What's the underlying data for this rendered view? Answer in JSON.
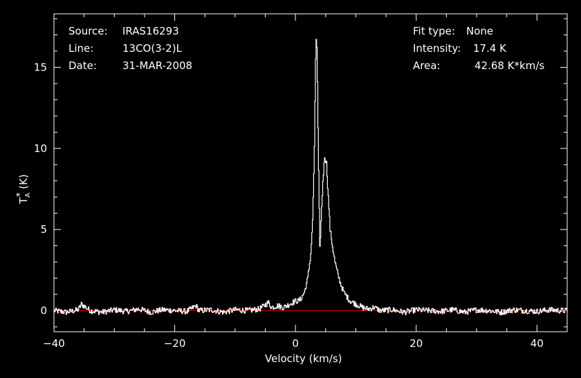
{
  "info_left": {
    "source_key": "Source:",
    "source_val": "IRAS16293",
    "line_key": "Line:",
    "line_val": "13CO(3-2)L",
    "date_key": "Date:",
    "date_val": "31-MAR-2008"
  },
  "info_right": {
    "fit_key": "Fit type:",
    "fit_val": "None",
    "intensity_key": "Intensity:",
    "intensity_val": "17.4 K",
    "area_key": "Area:",
    "area_val": "42.68 K*km/s"
  },
  "colors": {
    "background": "#000000",
    "axes": "#ffffff",
    "spectrum": "#ffffff",
    "baseline": "#cc0000"
  },
  "chart_data": {
    "type": "line",
    "xlabel": "Velocity (km/s)",
    "ylabel_main": "T",
    "ylabel_sub": "A",
    "ylabel_sup": "*",
    "ylabel_unit": "(K)",
    "xlim": [
      -40,
      45
    ],
    "ylim": [
      -1.3,
      18.3
    ],
    "x_ticks": [
      -40,
      -20,
      0,
      20,
      40
    ],
    "x_tick_labels": [
      "-40",
      "-20",
      "0",
      "20",
      "40"
    ],
    "y_ticks": [
      0,
      5,
      10,
      15
    ],
    "y_tick_labels": [
      "0",
      "5",
      "10",
      "15"
    ],
    "baseline": 0,
    "grid": false,
    "series": [
      {
        "values": [
          [
            -40,
            0.0
          ],
          [
            -38,
            -0.1
          ],
          [
            -36,
            0.05
          ],
          [
            -35.5,
            0.4
          ],
          [
            -34,
            0.0
          ],
          [
            -32,
            -0.1
          ],
          [
            -30,
            0.05
          ],
          [
            -28,
            -0.05
          ],
          [
            -26,
            0.1
          ],
          [
            -24,
            -0.1
          ],
          [
            -22,
            0.05
          ],
          [
            -20,
            0.0
          ],
          [
            -18,
            -0.05
          ],
          [
            -16.5,
            0.3
          ],
          [
            -16,
            0.0
          ],
          [
            -14,
            0.05
          ],
          [
            -12,
            -0.1
          ],
          [
            -10,
            0.05
          ],
          [
            -8,
            0.0
          ],
          [
            -6,
            0.1
          ],
          [
            -4.5,
            0.5
          ],
          [
            -4,
            0.2
          ],
          [
            -3,
            0.3
          ],
          [
            -2,
            0.2
          ],
          [
            -1,
            0.4
          ],
          [
            0,
            0.6
          ],
          [
            0.5,
            0.6
          ],
          [
            1,
            0.8
          ],
          [
            1.5,
            1.2
          ],
          [
            2,
            2.0
          ],
          [
            2.5,
            3.5
          ],
          [
            2.8,
            5.5
          ],
          [
            3.1,
            10.0
          ],
          [
            3.3,
            15.5
          ],
          [
            3.45,
            17.4
          ],
          [
            3.6,
            14.0
          ],
          [
            3.8,
            8.5
          ],
          [
            4.0,
            3.8
          ],
          [
            4.2,
            5.5
          ],
          [
            4.5,
            8.0
          ],
          [
            4.8,
            9.5
          ],
          [
            5.1,
            9.1
          ],
          [
            5.4,
            7.0
          ],
          [
            5.7,
            5.0
          ],
          [
            6.0,
            4.2
          ],
          [
            6.5,
            3.0
          ],
          [
            7.0,
            2.2
          ],
          [
            7.5,
            1.6
          ],
          [
            8.0,
            1.1
          ],
          [
            9.0,
            0.6
          ],
          [
            10.0,
            0.4
          ],
          [
            11.0,
            0.2
          ],
          [
            12.0,
            0.1
          ],
          [
            13.0,
            0.2
          ],
          [
            14.0,
            0.0
          ],
          [
            16.0,
            0.05
          ],
          [
            18,
            -0.1
          ],
          [
            20,
            0.05
          ],
          [
            22,
            0.0
          ],
          [
            24,
            -0.05
          ],
          [
            26,
            0.05
          ],
          [
            28,
            -0.1
          ],
          [
            30,
            0.05
          ],
          [
            32,
            0.0
          ],
          [
            34,
            -0.1
          ],
          [
            36,
            0.05
          ],
          [
            38,
            0.0
          ],
          [
            40,
            -0.05
          ],
          [
            42,
            0.05
          ],
          [
            44,
            0.0
          ],
          [
            45,
            0.0
          ]
        ]
      }
    ]
  }
}
